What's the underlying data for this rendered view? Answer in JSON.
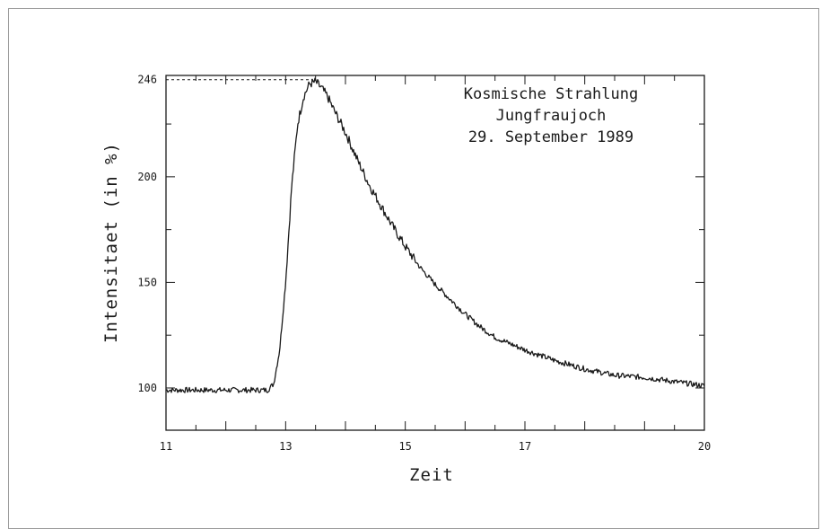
{
  "chart_data": {
    "type": "line",
    "title_lines": [
      "Kosmische Strahlung",
      "Jungfraujoch",
      "29. September 1989"
    ],
    "xlabel": "Zeit",
    "ylabel": "Intensitaet (in %)",
    "xlim": [
      11,
      20
    ],
    "ylim": [
      80,
      248
    ],
    "x_ticks": [
      11,
      13,
      15,
      17,
      20
    ],
    "y_ticks": [
      100,
      150,
      200,
      246
    ],
    "x_tick_labels": [
      "11",
      "13",
      "15",
      "17",
      "20"
    ],
    "y_tick_labels": [
      "100",
      "150",
      "200",
      "246"
    ],
    "peak_reference": {
      "x": 13.45,
      "y": 246
    },
    "series": [
      {
        "x": [
          11.0,
          11.5,
          12.0,
          12.5,
          12.7,
          12.8,
          12.9,
          13.0,
          13.1,
          13.2,
          13.3,
          13.4,
          13.5,
          13.6,
          13.7,
          13.8,
          14.0,
          14.2,
          14.4,
          14.6,
          14.8,
          15.0,
          15.25,
          15.5,
          15.75,
          16.0,
          16.25,
          16.5,
          16.75,
          17.0,
          17.5,
          18.0,
          18.5,
          19.0,
          19.5,
          20.0
        ],
        "values": [
          99,
          99,
          99,
          99,
          99,
          102,
          118,
          150,
          195,
          225,
          238,
          244,
          245,
          242,
          238,
          232,
          221,
          208,
          196,
          186,
          176,
          167,
          157,
          149,
          142,
          135,
          129,
          124,
          121,
          118,
          113,
          109,
          106,
          105,
          103,
          101
        ]
      }
    ]
  }
}
